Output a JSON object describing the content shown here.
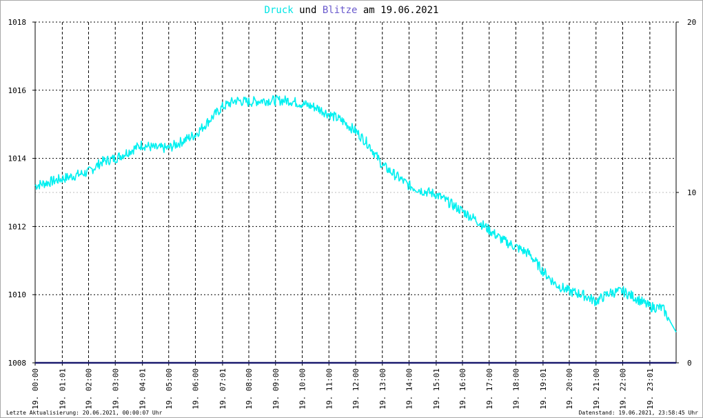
{
  "title": {
    "part1": "Druck",
    "part2": " und ",
    "part3": "Blitze",
    "part4": " am 19.06.2021",
    "color1": "#00e5e5",
    "color2": "#000000",
    "color3": "#6a5acd",
    "color4": "#000000"
  },
  "footer": {
    "left": "Letzte Aktualisierung: 20.06.2021, 00:00:07 Uhr",
    "right": "Datenstand: 19.06.2021, 23:58:45 Uhr"
  },
  "chart_data": {
    "type": "line",
    "grid": true,
    "x_ticks": [
      "19. 00:00",
      "19. 01:01",
      "19. 02:00",
      "19. 03:00",
      "19. 04:01",
      "19. 05:00",
      "19. 06:00",
      "19. 07:01",
      "19. 08:00",
      "19. 09:00",
      "19. 10:00",
      "19. 11:00",
      "19. 12:00",
      "19. 13:00",
      "19. 14:00",
      "19. 15:01",
      "19. 16:00",
      "19. 17:00",
      "19. 18:00",
      "19. 19:01",
      "19. 20:00",
      "19. 21:00",
      "19. 22:00",
      "19. 23:01"
    ],
    "y_left": {
      "ylim": [
        1008,
        1018
      ],
      "ticks": [
        "1008",
        "1010",
        "1012",
        "1014",
        "1016",
        "1018"
      ]
    },
    "y_right": {
      "ylim": [
        0,
        20
      ],
      "ticks": [
        "0",
        "10",
        "20"
      ]
    },
    "series": [
      {
        "name": "Druck",
        "axis": "left",
        "color": "#00f0f0",
        "x_hours": [
          0,
          0.5,
          1,
          1.5,
          2,
          2.5,
          3,
          3.5,
          4,
          4.5,
          5,
          5.5,
          6,
          6.5,
          7,
          7.5,
          8,
          8.5,
          9,
          9.5,
          10,
          10.5,
          11,
          11.5,
          12,
          12.5,
          13,
          13.5,
          14,
          14.5,
          15,
          15.5,
          16,
          16.5,
          17,
          17.5,
          18,
          18.5,
          19,
          19.5,
          20,
          20.5,
          21,
          21.5,
          22,
          22.5,
          23,
          23.5,
          24
        ],
        "values": [
          1013.2,
          1013.3,
          1013.4,
          1013.5,
          1013.6,
          1013.9,
          1014.0,
          1014.2,
          1014.4,
          1014.3,
          1014.3,
          1014.5,
          1014.7,
          1015.1,
          1015.5,
          1015.7,
          1015.65,
          1015.7,
          1015.7,
          1015.7,
          1015.6,
          1015.5,
          1015.3,
          1015.1,
          1014.8,
          1014.4,
          1013.8,
          1013.5,
          1013.2,
          1013.05,
          1012.95,
          1012.7,
          1012.45,
          1012.2,
          1011.9,
          1011.6,
          1011.4,
          1011.2,
          1010.7,
          1010.3,
          1010.1,
          1010.0,
          1009.8,
          1010.05,
          1010.1,
          1009.9,
          1009.65,
          1009.6,
          1008.9
        ]
      },
      {
        "name": "Blitze",
        "axis": "right",
        "color": "#1a1a6e",
        "x_hours": [
          0,
          24
        ],
        "values": [
          0,
          0
        ]
      }
    ]
  }
}
